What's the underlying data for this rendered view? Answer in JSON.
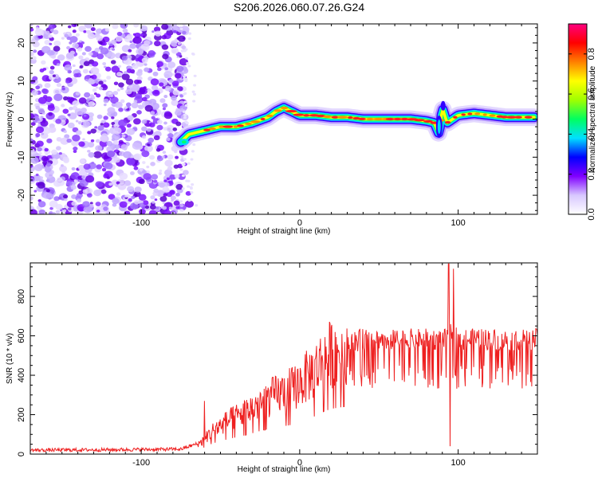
{
  "title": "S206.2026.060.07.26.G24",
  "chart_data": [
    {
      "type": "heatmap",
      "xlabel": "Height of straight line (km)",
      "ylabel": "Frequency (Hz)",
      "xlim": [
        -170,
        150
      ],
      "ylim": [
        -25,
        25
      ],
      "x_ticks": [
        -100,
        0,
        100
      ],
      "y_ticks": [
        -20,
        -10,
        0,
        10,
        20
      ],
      "noise_region_x": [
        -170,
        -72
      ],
      "ridge_x": [
        -75,
        -70,
        -60,
        -50,
        -40,
        -30,
        -20,
        -15,
        -10,
        -5,
        0,
        10,
        20,
        30,
        40,
        50,
        60,
        70,
        80,
        85,
        88,
        90,
        93,
        100,
        110,
        120,
        130,
        140,
        148
      ],
      "ridge_y": [
        -6,
        -4,
        -3,
        -2,
        -2,
        -1,
        0.5,
        2,
        3,
        2,
        1,
        1,
        0.5,
        0.5,
        0,
        0,
        0,
        0,
        -0.5,
        -1,
        -4,
        3,
        -1,
        1,
        1.5,
        1,
        0.5,
        0.5,
        0.5
      ],
      "colorbar": {
        "label": "Normalized spectral amplitude",
        "range": [
          0,
          0.95
        ],
        "ticks": [
          "0.0",
          "0.2",
          "0.4",
          "0.6",
          "0.8"
        ],
        "colors": [
          "#ffffff",
          "#d8c8ff",
          "#8000ff",
          "#0000ff",
          "#00e0ff",
          "#00ff60",
          "#a0ff00",
          "#ffff00",
          "#ff8000",
          "#ff0000",
          "#ff0080"
        ]
      },
      "grid": false
    },
    {
      "type": "line",
      "xlabel": "Height of straight line (km)",
      "ylabel": "SNR (10 * v/v)",
      "xlim": [
        -170,
        150
      ],
      "ylim": [
        0,
        970
      ],
      "x_ticks": [
        -100,
        0,
        100
      ],
      "y_ticks": [
        0,
        200,
        400,
        600,
        800
      ],
      "color": "#ee2020",
      "envelope_x": [
        -170,
        -120,
        -75,
        -62,
        -55,
        -45,
        -35,
        -25,
        -15,
        -5,
        0,
        10,
        15,
        20,
        30,
        40,
        50,
        60,
        70,
        80,
        88,
        93,
        97,
        100,
        110,
        120,
        130,
        140,
        150
      ],
      "envelope_y": [
        20,
        22,
        25,
        60,
        120,
        170,
        210,
        260,
        300,
        330,
        360,
        430,
        480,
        510,
        540,
        560,
        560,
        555,
        560,
        560,
        560,
        560,
        600,
        560,
        560,
        560,
        555,
        560,
        560
      ],
      "spikes": [
        {
          "x": 94,
          "y": 965
        },
        {
          "x": 97,
          "y": 940
        },
        {
          "x": 95,
          "y": 40
        },
        {
          "x": -60,
          "y": 270
        }
      ],
      "grid": false
    }
  ]
}
